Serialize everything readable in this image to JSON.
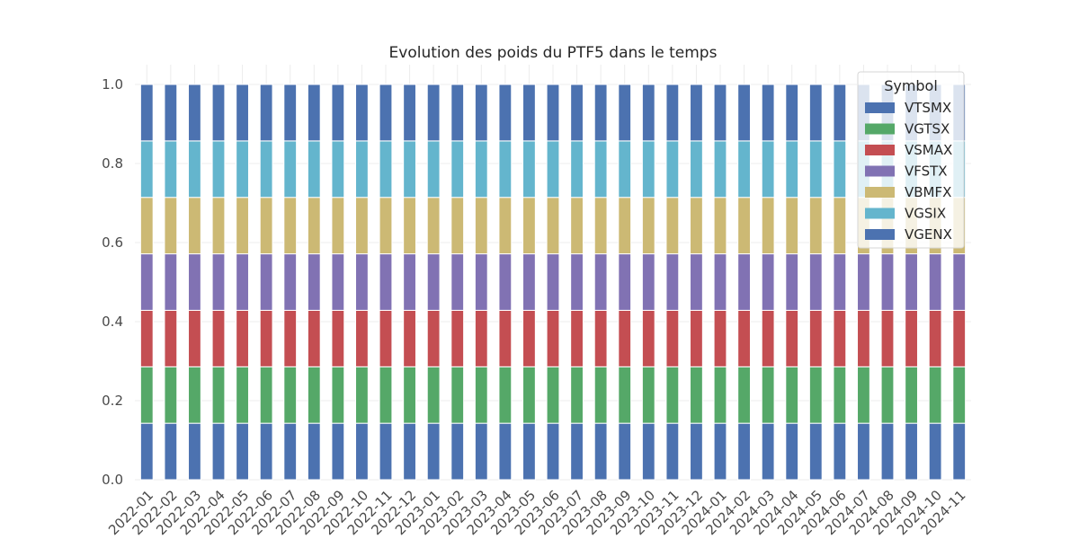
{
  "chart_data": {
    "type": "bar",
    "stacked": true,
    "title": "Evolution des poids du PTF5 dans le temps",
    "xlabel": "",
    "ylabel": "",
    "ylim": [
      0,
      1.05
    ],
    "yticks": [
      "0.0",
      "0.2",
      "0.4",
      "0.6",
      "0.8",
      "1.0"
    ],
    "grid": true,
    "legend": {
      "title": "Symbol",
      "placement": "top-right"
    },
    "categories": [
      "2022-01",
      "2022-02",
      "2022-03",
      "2022-04",
      "2022-05",
      "2022-06",
      "2022-07",
      "2022-08",
      "2022-09",
      "2022-10",
      "2022-11",
      "2022-12",
      "2023-01",
      "2023-02",
      "2023-03",
      "2023-04",
      "2023-05",
      "2023-06",
      "2023-07",
      "2023-08",
      "2023-09",
      "2023-10",
      "2023-11",
      "2023-12",
      "2024-01",
      "2024-02",
      "2024-03",
      "2024-04",
      "2024-05",
      "2024-06",
      "2024-07",
      "2024-08",
      "2024-09",
      "2024-10",
      "2024-11"
    ],
    "series": [
      {
        "name": "VTSMX",
        "color": "#4c72b0",
        "value_each_period": 0.142857
      },
      {
        "name": "VGTSX",
        "color": "#55a868",
        "value_each_period": 0.142857
      },
      {
        "name": "VSMAX",
        "color": "#c44e52",
        "value_each_period": 0.142857
      },
      {
        "name": "VFSTX",
        "color": "#8172b3",
        "value_each_period": 0.142857
      },
      {
        "name": "VBMFX",
        "color": "#ccb974",
        "value_each_period": 0.142857
      },
      {
        "name": "VGSIX",
        "color": "#64b5cd",
        "value_each_period": 0.142857
      },
      {
        "name": "VGENX",
        "color": "#4c72b0",
        "value_each_period": 0.142857
      }
    ]
  }
}
